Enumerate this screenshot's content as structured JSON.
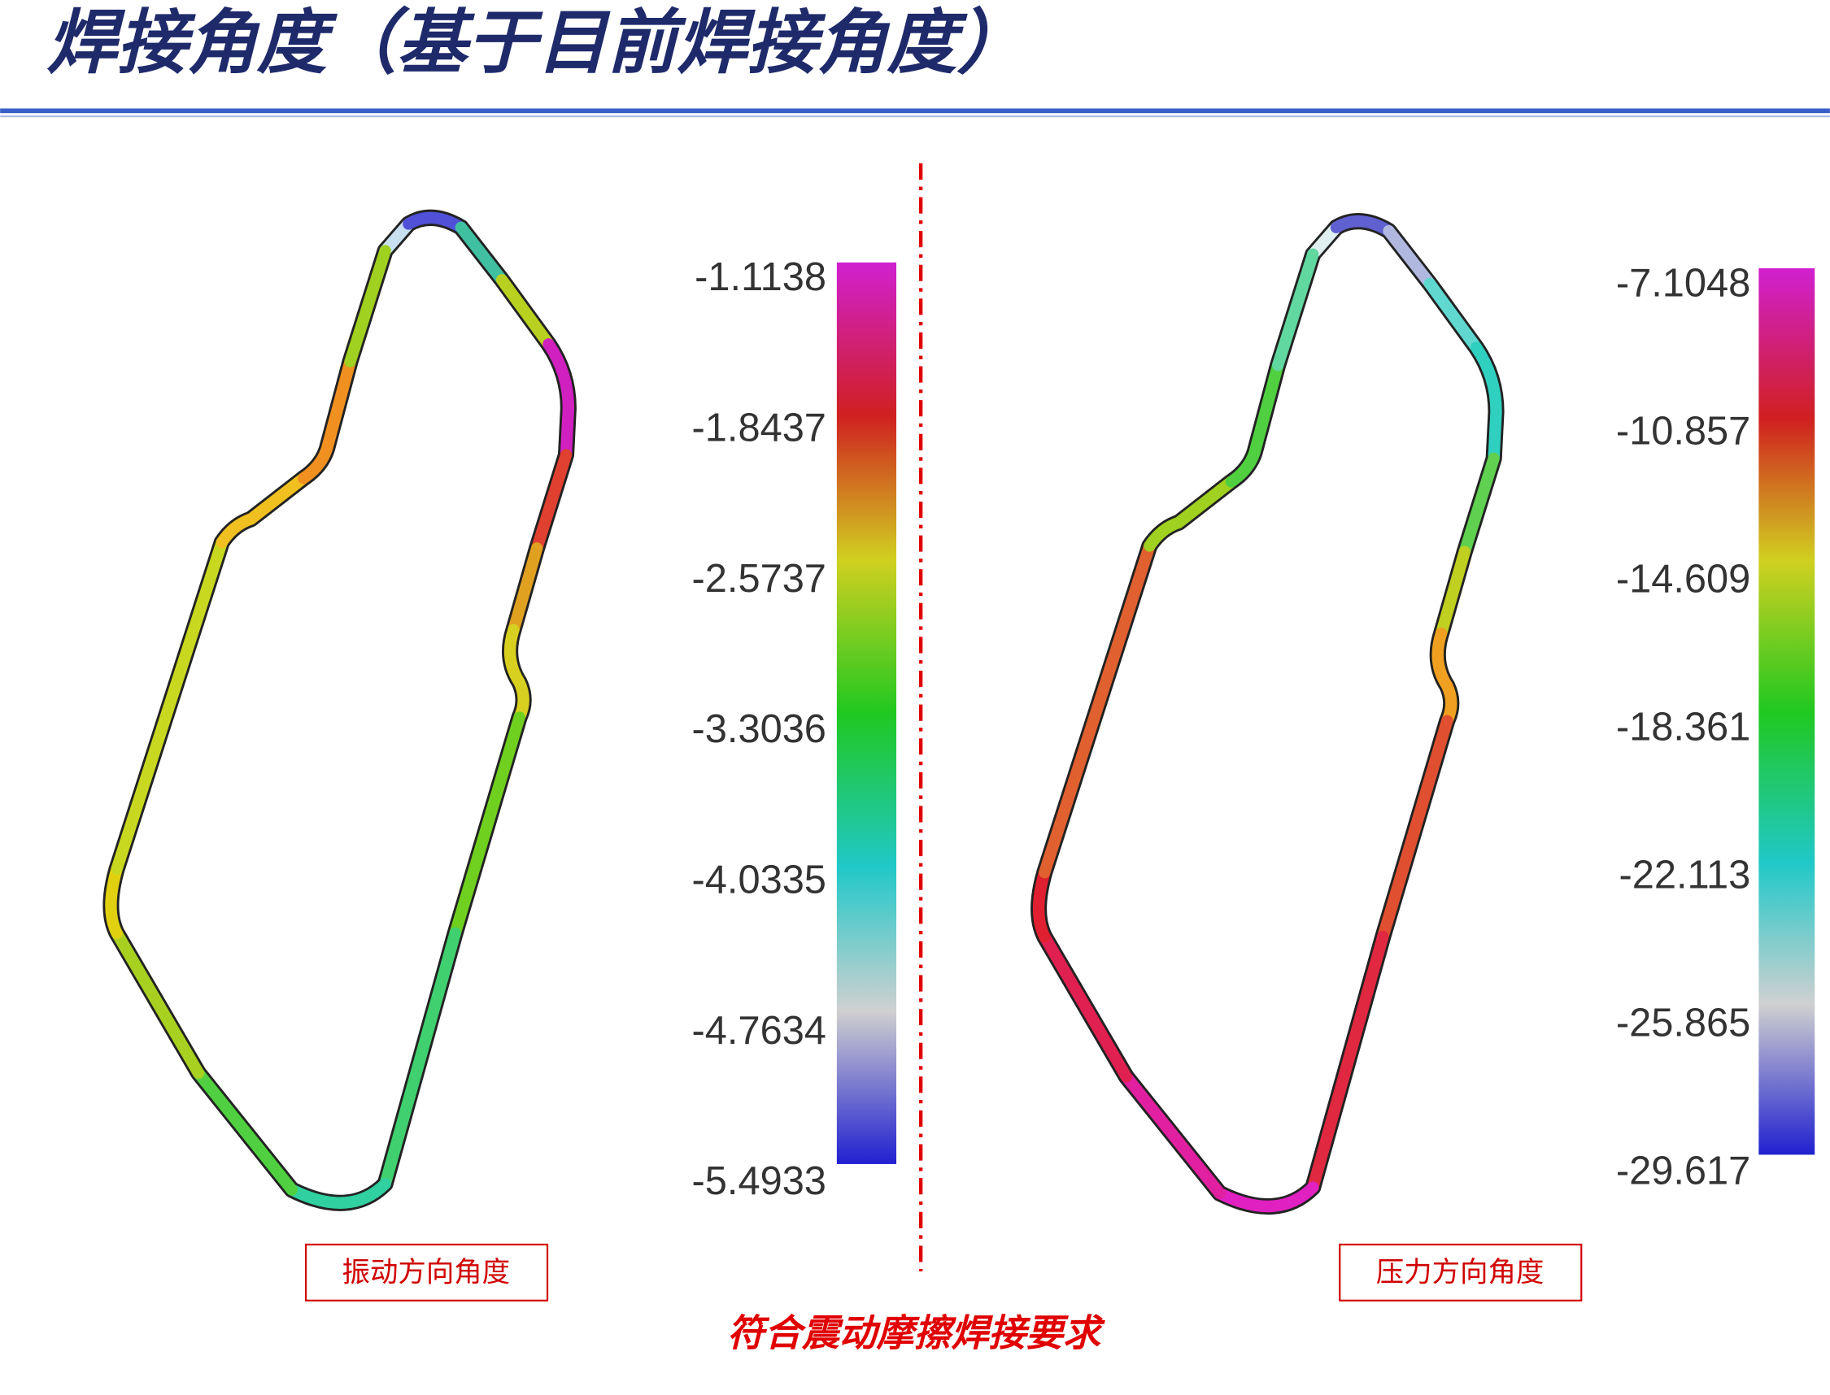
{
  "header": {
    "title": "焊接角度（基于目前焊接角度）"
  },
  "panels": [
    {
      "colorbar_ticks": [
        "-1.1138",
        "-1.8437",
        "-2.5737",
        "-3.3036",
        "-4.0335",
        "-4.7634",
        "-5.4933"
      ],
      "caption": "振动方向角度"
    },
    {
      "colorbar_ticks": [
        "-7.1048",
        "-10.857",
        "-14.609",
        "-18.361",
        "-22.113",
        "-25.865",
        "-29.617"
      ],
      "caption": "压力方向角度"
    }
  ],
  "conclusion": "符合震动摩擦焊接要求"
}
